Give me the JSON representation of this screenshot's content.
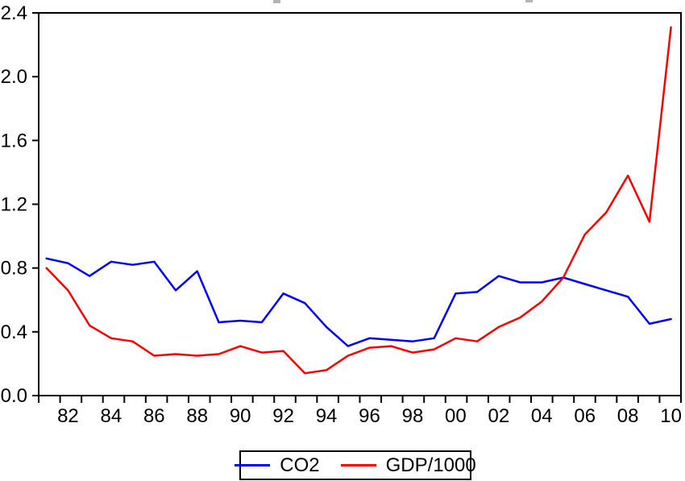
{
  "figure": {
    "background": "#ffffff",
    "top_edge_artifacts": "two faint gray marks (descenders of a cropped-off title)"
  },
  "chart_data": {
    "type": "line",
    "title": "",
    "xlabel": "",
    "ylabel": "",
    "x": [
      1981,
      1982,
      1983,
      1984,
      1985,
      1986,
      1987,
      1988,
      1989,
      1990,
      1991,
      1992,
      1993,
      1994,
      1995,
      1996,
      1997,
      1998,
      1999,
      2000,
      2001,
      2002,
      2003,
      2004,
      2005,
      2006,
      2007,
      2008,
      2009,
      2010
    ],
    "series": [
      {
        "name": "CO2",
        "color": "#0000ff",
        "values": [
          0.86,
          0.83,
          0.75,
          0.84,
          0.82,
          0.84,
          0.66,
          0.78,
          0.46,
          0.47,
          0.46,
          0.64,
          0.58,
          0.43,
          0.31,
          0.36,
          0.35,
          0.34,
          0.36,
          0.64,
          0.65,
          0.75,
          0.71,
          0.71,
          0.74,
          0.7,
          0.66,
          0.62,
          0.45,
          0.48
        ]
      },
      {
        "name": "GDP/1000",
        "color": "#ff0000",
        "values": [
          0.8,
          0.66,
          0.44,
          0.36,
          0.34,
          0.25,
          0.26,
          0.25,
          0.26,
          0.31,
          0.27,
          0.28,
          0.14,
          0.16,
          0.25,
          0.3,
          0.31,
          0.27,
          0.29,
          0.36,
          0.34,
          0.43,
          0.49,
          0.59,
          0.74,
          1.01,
          1.15,
          1.38,
          1.09,
          2.31
        ]
      }
    ],
    "ylim": [
      0.0,
      2.4
    ],
    "yticks": [
      0.0,
      0.4,
      0.8,
      1.2,
      1.6,
      2.0,
      2.4
    ],
    "ytick_labels": [
      "0.0",
      "0.4",
      "0.8",
      "1.2",
      "1.6",
      "2.0",
      "2.4"
    ],
    "xtick_labels": [
      "82",
      "84",
      "86",
      "88",
      "90",
      "92",
      "94",
      "96",
      "98",
      "00",
      "02",
      "04",
      "06",
      "08",
      "10"
    ],
    "grid": false,
    "legend_position": "bottom-center",
    "axis_color": "#000000",
    "text_color": "#000000"
  },
  "legend": {
    "items": [
      {
        "label": "CO2",
        "color": "#0000ff"
      },
      {
        "label": "GDP/1000",
        "color": "#ff0000"
      }
    ]
  }
}
